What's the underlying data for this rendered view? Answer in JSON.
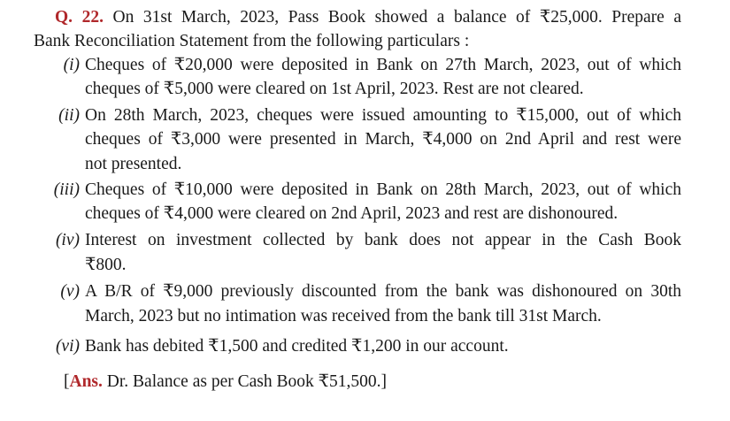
{
  "question": {
    "number": "Q. 22.",
    "line1": "On 31st March, 2023, Pass Book showed a balance of ₹25,000. Prepare a",
    "line2": "Bank Reconciliation Statement from the following particulars :"
  },
  "items": [
    {
      "label": "(i)",
      "lines": [
        "Cheques of ₹20,000 were deposited in Bank on 27th March, 2023, out of which",
        "cheques of ₹5,000 were cleared on 1st April, 2023. Rest are not cleared."
      ]
    },
    {
      "label": "(ii)",
      "lines": [
        "On 28th March, 2023, cheques were issued amounting to ₹15,000, out of which",
        "cheques of ₹3,000 were presented in March, ₹4,000 on 2nd April and rest were",
        "not presented."
      ]
    },
    {
      "label": "(iii)",
      "lines": [
        "Cheques of ₹10,000 were deposited in Bank on 28th March, 2023, out of which",
        "cheques of ₹4,000 were cleared on 2nd April, 2023 and rest are dishonoured."
      ]
    },
    {
      "label": "(iv)",
      "lines": [
        "Interest on investment collected by bank does not appear in the Cash Book",
        "₹800."
      ]
    },
    {
      "label": "(v)",
      "lines": [
        "A B/R of ₹9,000 previously discounted from the bank was dishonoured on 30th",
        "March, 2023 but no intimation was received from the bank till 31st March."
      ]
    },
    {
      "label": "(vi)",
      "lines": [
        "Bank has debited ₹1,500 and credited ₹1,200 in our account."
      ]
    }
  ],
  "answer": {
    "open": "[",
    "label": "Ans.",
    "text": " Dr. Balance as per Cash Book ₹51,500.]"
  },
  "colors": {
    "accent": "#b0282b",
    "text": "#1a1a1a"
  }
}
